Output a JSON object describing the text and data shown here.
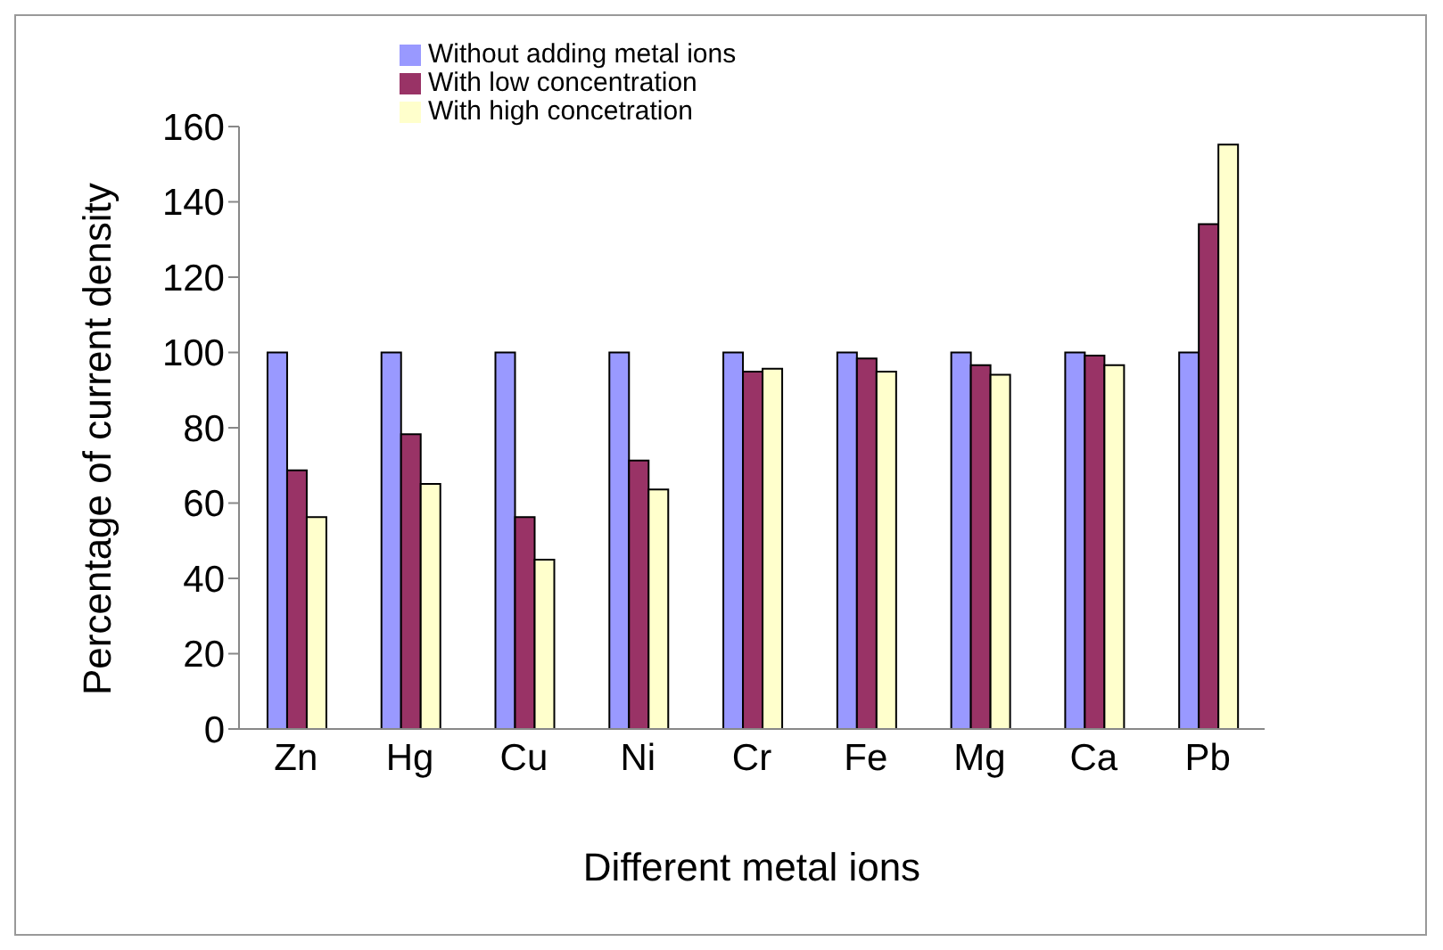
{
  "chart_data": {
    "type": "bar",
    "xlabel": "Different metal ions",
    "ylabel": "Percentage of current density",
    "categories": [
      "Zn",
      "Hg",
      "Cu",
      "Ni",
      "Cr",
      "Fe",
      "Mg",
      "Ca",
      "Pb"
    ],
    "series": [
      {
        "name": "Without adding metal ions",
        "color": "#9999ff",
        "values": [
          100,
          100,
          100,
          100,
          100,
          100,
          100,
          100,
          100
        ]
      },
      {
        "name": "With low concentration",
        "color": "#993366",
        "values": [
          68.7,
          78.3,
          56.3,
          71.3,
          94.9,
          98.4,
          96.6,
          99.2,
          134.1
        ]
      },
      {
        "name": "With high concetration",
        "color": "#ffffcc",
        "values": [
          56.3,
          65.1,
          45,
          63.6,
          95.7,
          94.9,
          94.1,
          96.6,
          155.2
        ]
      }
    ],
    "ylim": [
      0,
      160
    ],
    "yticks": [
      0,
      20,
      40,
      60,
      80,
      100,
      120,
      140,
      160
    ],
    "grid": false,
    "legend": "top"
  }
}
